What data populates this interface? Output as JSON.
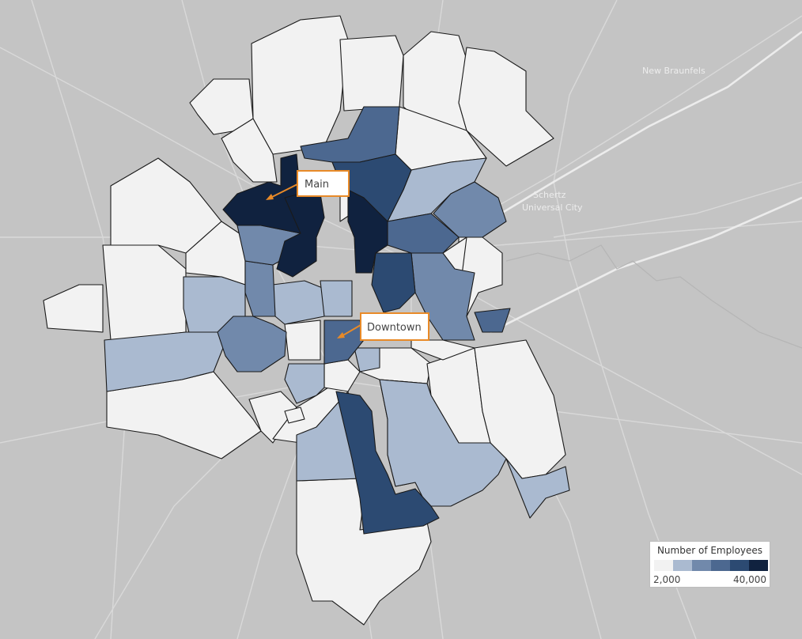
{
  "basemap": {
    "place_labels": [
      "New Braunfels",
      "Schertz",
      "Universal City"
    ]
  },
  "legend": {
    "title": "Number of Employees",
    "min_label": "2,000",
    "max_label": "40,000",
    "colors": [
      "#f2f2f2",
      "#aabad0",
      "#7189ab",
      "#4c6890",
      "#2c4a72",
      "#10223f"
    ]
  },
  "annotations": [
    {
      "label": "Main"
    },
    {
      "label": "Downtown"
    }
  ],
  "map_data": {
    "type": "choropleth",
    "measure": "Number of Employees",
    "range": [
      2000,
      40000
    ],
    "regions_by_level": {
      "level_0": 28,
      "level_1": 10,
      "level_2": 5,
      "level_3": 4,
      "level_4": 3,
      "level_5": 3
    }
  }
}
